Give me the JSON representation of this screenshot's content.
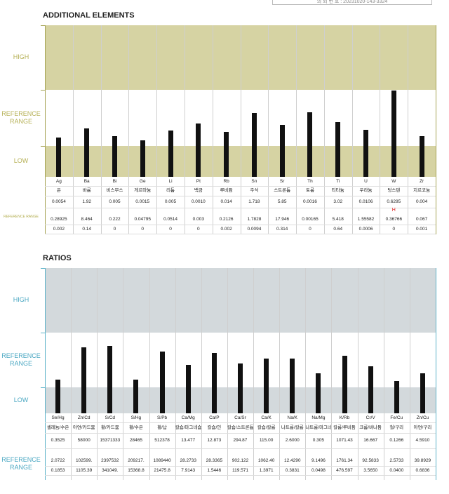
{
  "header_fragment": "의 뢰 번 호 : 20231020-143-3324",
  "elements": {
    "title": "ADDITIONAL ELEMENTS",
    "band_labels": {
      "high": "HIGH",
      "reference": "REFERENCE RANGE",
      "low": "LOW"
    },
    "reference_label": "REFERENCE RANGE",
    "colors": {
      "band": "#d6d3a3",
      "label": "#b5b055",
      "line": "#a6a456"
    },
    "flag": {
      "column": 12,
      "text": "H"
    }
  },
  "ratios": {
    "title": "RATIOS",
    "band_labels": {
      "high": "HIGH",
      "reference": "REFERENCE RANGE",
      "low": "LOW"
    },
    "reference_label": "REFERENCE RANGE",
    "colors": {
      "band": "#d3d9dc",
      "label": "#4aa7c2",
      "line": "#5db3c9"
    }
  },
  "chart_data": [
    {
      "type": "bar",
      "title": "ADDITIONAL ELEMENTS",
      "scale": "bands: low below, reference range middle, high above",
      "categories": [
        "Ag",
        "Ba",
        "Bi",
        "Ge",
        "Li",
        "Pt",
        "Rb",
        "Sn",
        "Sr",
        "Th",
        "Ti",
        "U",
        "W",
        "Zr"
      ],
      "korean_names": [
        "은",
        "바륨",
        "비스무스",
        "게르마늄",
        "리튬",
        "백금",
        "루비듐",
        "주석",
        "스트론튬",
        "토륨",
        "티타늄",
        "우라늄",
        "텅스텐",
        "지르코늄"
      ],
      "values": [
        "0.0054",
        "1.92",
        "0.005",
        "0.0015",
        "0.005",
        "0.0010",
        "0.014",
        "1.718",
        "5.85",
        "0.0016",
        "3.02",
        "0.0106",
        "0.6295",
        "0.004"
      ],
      "ref_high": [
        "0.28925",
        "8.464",
        "0.222",
        "0.04795",
        "0.0514",
        "0.003",
        "0.2126",
        "1.7828",
        "17.946",
        "0.00165",
        "5.418",
        "1.55582",
        "0.36766",
        "0.067"
      ],
      "ref_low": [
        "0.002",
        "0.14",
        "0",
        "0",
        "0",
        "0",
        "0.002",
        "0.0094",
        "0.314",
        "0",
        "0.64",
        "0.0006",
        "0",
        "0.001"
      ],
      "bar_level": [
        0.35,
        0.51,
        0.38,
        0.3,
        0.47,
        0.6,
        0.45,
        0.79,
        0.57,
        0.8,
        0.63,
        0.49,
        1.19,
        0.37
      ]
    },
    {
      "type": "bar",
      "title": "RATIOS",
      "scale": "bands: low below, reference range middle, high above",
      "categories": [
        "Se/Hg",
        "Zn/Cd",
        "S/Cd",
        "S/Hg",
        "S/Pb",
        "Ca/Mg",
        "Ca/P",
        "Ca/Sr",
        "Ca/K",
        "Na/K",
        "Na/Mg",
        "K/Rb",
        "Cr/V",
        "Fe/Cu",
        "Zn/Cu"
      ],
      "korean_names": [
        "셀레늄/수은",
        "아연/카드뮴",
        "황/카드뮴",
        "황/수은",
        "황/납",
        "칼슘/마그네슘",
        "칼슘/인",
        "칼슘/스트론튬",
        "칼슘/칼륨",
        "나트륨/칼륨",
        "나트륨/마그네슘",
        "칼륨/루비듐",
        "크롬/바나듐",
        "철/구리",
        "아연/구리"
      ],
      "values": [
        "0.3525",
        "58000",
        "15371333",
        "28465",
        "512378",
        "13.477",
        "12.873",
        "294.87",
        "115.00",
        "2.6000",
        "0.305",
        "1071.43",
        "16.667",
        "0.1266",
        "4.5910"
      ],
      "ref_high": [
        "2.0722",
        "102599.",
        "2397532",
        "209217.",
        "1089440",
        "28.2733",
        "28.3365",
        "902.122",
        "1062.40",
        "12.4290",
        "9.1496",
        "1761.34",
        "92.5833",
        "2.5733",
        "39.8929"
      ],
      "ref_low": [
        "0.1853",
        "1105.39",
        "341049.",
        "15368.8",
        "21475.8",
        "7.9143",
        "1.5446",
        "119.571",
        "1.3971",
        "0.3831",
        "0.0498",
        "476.597",
        "3.5650",
        "0.0400",
        "0.6836"
      ],
      "bar_level": [
        0.18,
        0.77,
        0.8,
        0.18,
        0.69,
        0.45,
        0.67,
        0.47,
        0.57,
        0.57,
        0.29,
        0.62,
        0.42,
        0.16,
        0.29
      ]
    }
  ]
}
